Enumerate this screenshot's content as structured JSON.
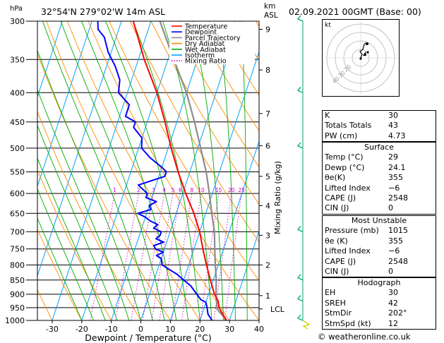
{
  "header": {
    "hpa_label": "hPa",
    "location": "32°54'N  279°02'W  14m  ASL",
    "km_label": "km",
    "asl_label": "ASL",
    "datetime": "02.09.2021  00GMT  (Base: 00)"
  },
  "legend": {
    "items": [
      {
        "label": "Temperature",
        "color": "#ff0000",
        "style": "solid"
      },
      {
        "label": "Dewpoint",
        "color": "#0000ff",
        "style": "solid"
      },
      {
        "label": "Parcel Trajectory",
        "color": "#8c8c8c",
        "style": "solid"
      },
      {
        "label": "Dry Adiabat",
        "color": "#ff8c00",
        "style": "solid"
      },
      {
        "label": "Wet Adiabat",
        "color": "#00aa00",
        "style": "solid"
      },
      {
        "label": "Isotherm",
        "color": "#00a0ff",
        "style": "solid"
      },
      {
        "label": "Mixing Ratio",
        "color": "#cc00cc",
        "style": "dotted"
      }
    ]
  },
  "colors": {
    "temperature": "#ff0000",
    "dewpoint": "#0000ff",
    "parcel": "#8c8c8c",
    "dry_adiabat": "#ff8c00",
    "wet_adiabat": "#00aa00",
    "isotherm": "#00a0ff",
    "mixing_ratio": "#cc00cc",
    "wind": "#00aa66"
  },
  "chart_data": {
    "type": "skew-t log-p",
    "xlabel": "Dewpoint / Temperature (°C)",
    "ylabel_right": "Mixing Ratio (g/kg)",
    "xlim": [
      -35,
      40
    ],
    "plim": [
      1000,
      300
    ],
    "x_ticks": [
      -30,
      -20,
      -10,
      0,
      10,
      20,
      30,
      40
    ],
    "pressure_levels": [
      300,
      350,
      400,
      450,
      500,
      550,
      600,
      650,
      700,
      750,
      800,
      850,
      900,
      950,
      1000
    ],
    "km_ticks": [
      {
        "label": "9",
        "p": 310
      },
      {
        "label": "8",
        "p": 365
      },
      {
        "label": "7",
        "p": 435
      },
      {
        "label": "6",
        "p": 495
      },
      {
        "label": "5",
        "p": 560
      },
      {
        "label": "4",
        "p": 630
      },
      {
        "label": "3",
        "p": 710
      },
      {
        "label": "2",
        "p": 800
      },
      {
        "label": "1",
        "p": 905
      }
    ],
    "lcl_label": "LCL",
    "lcl_p": 955,
    "mixing_ratio_labels": [
      "1",
      "2",
      "3",
      "4",
      "5",
      "6",
      "8",
      "10",
      "15",
      "20",
      "25"
    ],
    "mixing_ratio_values": [
      1,
      2,
      3,
      4,
      5,
      6,
      8,
      10,
      15,
      20,
      25
    ],
    "mixing_ratio_label_p": 600,
    "temperature": {
      "p": [
        1000,
        975,
        950,
        925,
        900,
        850,
        800,
        750,
        700,
        650,
        600,
        550,
        500,
        450,
        400,
        350,
        300
      ],
      "t": [
        29,
        27,
        25,
        24,
        22,
        19,
        16,
        13,
        10,
        6,
        1,
        -4,
        -9,
        -14,
        -20,
        -28,
        -36
      ]
    },
    "dewpoint": {
      "p": [
        1000,
        975,
        950,
        930,
        920,
        900,
        870,
        850,
        830,
        810,
        800,
        780,
        770,
        760,
        750,
        740,
        730,
        720,
        710,
        700,
        690,
        680,
        670,
        660,
        650,
        640,
        630,
        620,
        610,
        600,
        590,
        580,
        570,
        560,
        550,
        540,
        520,
        500,
        480,
        460,
        450,
        440,
        420,
        400,
        380,
        360,
        340,
        320,
        310,
        300
      ],
      "td": [
        24.1,
        22,
        21,
        20,
        18,
        16,
        13,
        10,
        7,
        3,
        1,
        0,
        -2,
        0,
        -3,
        -4,
        -1,
        -4,
        -3,
        -3,
        -6,
        -5,
        -8,
        -10,
        -13,
        -9,
        -10,
        -8,
        -12,
        -12,
        -14,
        -16,
        -12,
        -8,
        -8,
        -10,
        -15,
        -19,
        -20,
        -24,
        -24,
        -28,
        -28,
        -33,
        -34,
        -37,
        -41,
        -44,
        -47,
        -48
      ]
    },
    "parcel": {
      "p": [
        1000,
        955,
        900,
        850,
        800,
        750,
        700,
        650,
        600,
        550,
        500,
        450,
        400,
        350,
        300
      ],
      "t": [
        29,
        24.5,
        22.5,
        21,
        19,
        17,
        15,
        12,
        9,
        5.5,
        1,
        -4,
        -10,
        -18,
        -27
      ]
    },
    "wind_barbs_p": [
      300,
      400,
      500,
      700,
      850,
      925,
      1000
    ]
  },
  "hodograph": {
    "label": "kt",
    "ring_labels": [
      "20",
      "30",
      "40"
    ]
  },
  "indices": [
    {
      "label": "K",
      "value": "30"
    },
    {
      "label": "Totals Totals",
      "value": "43"
    },
    {
      "label": "PW (cm)",
      "value": "4.73"
    }
  ],
  "surface": {
    "title": "Surface",
    "rows": [
      {
        "label": "Temp (°C)",
        "value": "29"
      },
      {
        "label": "Dewp (°C)",
        "value": "24.1"
      },
      {
        "label": "θe(K)",
        "value": "355"
      },
      {
        "label": "Lifted Index",
        "value": "−6"
      },
      {
        "label": "CAPE (J)",
        "value": "2548"
      },
      {
        "label": "CIN (J)",
        "value": "0"
      }
    ]
  },
  "most_unstable": {
    "title": "Most Unstable",
    "rows": [
      {
        "label": "Pressure (mb)",
        "value": "1015"
      },
      {
        "label": "θe (K)",
        "value": "355"
      },
      {
        "label": "Lifted Index",
        "value": "−6"
      },
      {
        "label": "CAPE (J)",
        "value": "2548"
      },
      {
        "label": "CIN (J)",
        "value": "0"
      }
    ]
  },
  "hodograph_table": {
    "title": "Hodograph",
    "rows": [
      {
        "label": "EH",
        "value": "30"
      },
      {
        "label": "SREH",
        "value": "42"
      },
      {
        "label": "StmDir",
        "value": "202°"
      },
      {
        "label": "StmSpd (kt)",
        "value": "12"
      }
    ]
  },
  "footer": "© weatheronline.co.uk"
}
